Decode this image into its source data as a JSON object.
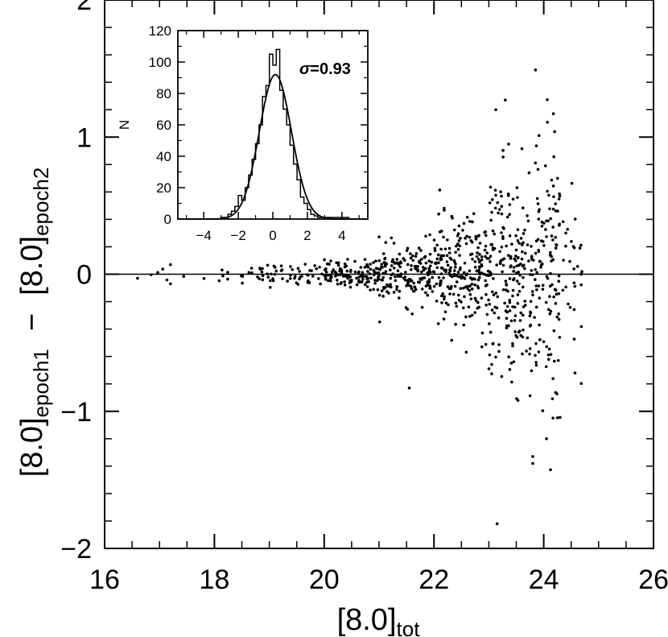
{
  "chart_data": [
    {
      "type": "scatter",
      "xlabel": {
        "main": "[8.0]",
        "sub": "tot"
      },
      "ylabel": {
        "part1_main": "[8.0]",
        "part1_sub": "epoch1",
        "minus": "−",
        "part2_main": "[8.0]",
        "part2_sub": "epoch2"
      },
      "xlim": [
        16,
        26
      ],
      "ylim": [
        -2,
        2
      ],
      "xticks": [
        16,
        18,
        20,
        22,
        24,
        26
      ],
      "xtick_labels": [
        "16",
        "18",
        "20",
        "22",
        "24",
        "26"
      ],
      "yticks": [
        -2,
        -1,
        0,
        1,
        2
      ],
      "ytick_labels": [
        "−2",
        "−1",
        "0",
        "1",
        "2"
      ],
      "reference_line_y": 0,
      "random_seed": 12345,
      "point_groups": [
        {
          "x_min": 16.5,
          "x_max": 18.5,
          "count": 12,
          "spread": 0.03
        },
        {
          "x_min": 18.5,
          "x_max": 20.0,
          "count": 60,
          "spread": 0.04
        },
        {
          "x_min": 20.0,
          "x_max": 21.0,
          "count": 120,
          "spread": 0.05
        },
        {
          "x_min": 21.0,
          "x_max": 22.0,
          "count": 160,
          "spread": 0.1
        },
        {
          "x_min": 22.0,
          "x_max": 23.0,
          "count": 220,
          "spread": 0.2
        },
        {
          "x_min": 23.0,
          "x_max": 23.7,
          "count": 180,
          "spread": 0.38
        },
        {
          "x_min": 23.7,
          "x_max": 24.3,
          "count": 150,
          "spread": 0.5
        },
        {
          "x_min": 24.3,
          "x_max": 24.7,
          "count": 30,
          "spread": 0.4
        }
      ],
      "explicit_points": [
        {
          "x": 23.15,
          "y": -1.82
        },
        {
          "x": 23.8,
          "y": -1.38
        },
        {
          "x": 23.8,
          "y": -1.33
        },
        {
          "x": 23.85,
          "y": 1.49
        },
        {
          "x": 23.3,
          "y": 1.27
        },
        {
          "x": 24.05,
          "y": -1.2
        },
        {
          "x": 21.55,
          "y": -0.83
        },
        {
          "x": 17.2,
          "y": 0.07
        },
        {
          "x": 17.2,
          "y": -0.07
        },
        {
          "x": 16.6,
          "y": -0.03
        }
      ]
    },
    {
      "type": "histogram",
      "ylabel": "N",
      "xlim": [
        -5.5,
        5.5
      ],
      "ylim": [
        0,
        120
      ],
      "xticks": [
        -4,
        -2,
        0,
        2,
        4
      ],
      "xtick_labels": [
        "−4",
        "−2",
        "0",
        "2",
        "4"
      ],
      "yticks": [
        0,
        20,
        40,
        60,
        80,
        100,
        120
      ],
      "ytick_labels": [
        "0",
        "20",
        "40",
        "60",
        "80",
        "100",
        "120"
      ],
      "annotation": {
        "prefix": "σ",
        "text": "=0.93"
      },
      "bin_edges": [
        -3.0,
        -2.8,
        -2.6,
        -2.4,
        -2.2,
        -2.0,
        -1.8,
        -1.6,
        -1.4,
        -1.2,
        -1.0,
        -0.8,
        -0.6,
        -0.4,
        -0.2,
        0.0,
        0.2,
        0.4,
        0.6,
        0.8,
        1.0,
        1.2,
        1.4,
        1.6,
        1.8,
        2.0,
        2.2,
        2.4,
        2.6,
        2.8,
        3.0,
        3.2,
        3.4,
        3.6,
        3.8,
        4.0,
        4.2,
        4.4
      ],
      "bin_counts": [
        1,
        1,
        3,
        5,
        8,
        15,
        12,
        20,
        28,
        38,
        48,
        60,
        78,
        85,
        105,
        98,
        108,
        82,
        70,
        60,
        47,
        35,
        25,
        14,
        10,
        6,
        3,
        2,
        1,
        1,
        1,
        1,
        1,
        1,
        1,
        1,
        1
      ],
      "gaussian_fit": {
        "amplitude": 92,
        "mean": 0.15,
        "sigma": 0.93
      }
    }
  ]
}
